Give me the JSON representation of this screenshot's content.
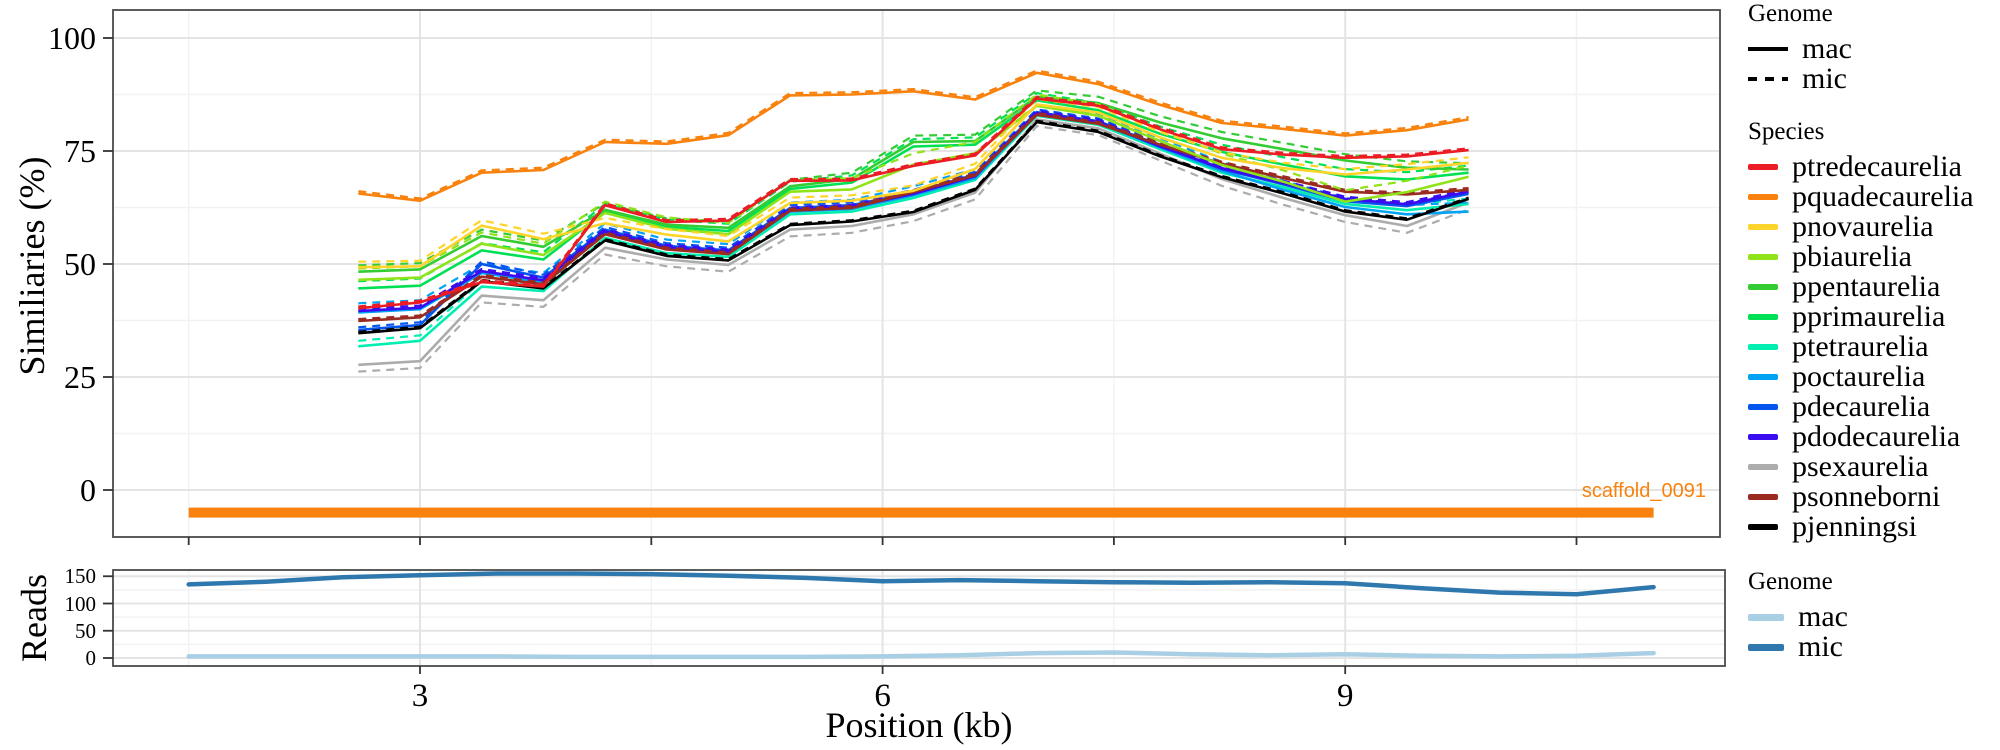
{
  "chart_data": [
    {
      "id": "similarity_panel",
      "type": "line",
      "title": "",
      "ylabel": "Similiaries (%)",
      "xlabel": "",
      "ylim": [
        -10,
        106
      ],
      "xlim": [
        1.0,
        11.43
      ],
      "grid": "on",
      "y_ticks": [
        {
          "label": "100",
          "value": 100
        },
        {
          "label": "75",
          "value": 75
        },
        {
          "label": "50",
          "value": 50
        },
        {
          "label": "25",
          "value": 25
        },
        {
          "label": "0",
          "value": 0
        }
      ],
      "y_minor_gridlines": [
        12.5,
        37.5,
        62.5,
        87.5
      ],
      "x_major_gridlines": [
        3,
        6,
        9
      ],
      "x_minor_gridlines": [
        1.5,
        4.5,
        7.5,
        10.5
      ],
      "x_axis_ticks": [
        1.5,
        3,
        4.5,
        6,
        7.5,
        9,
        10.5
      ],
      "x": [
        2.6,
        3.0,
        3.4,
        3.8,
        4.2,
        4.6,
        5.0,
        5.4,
        5.8,
        6.2,
        6.6,
        7.0,
        7.4,
        7.8,
        8.2,
        8.6,
        9.0,
        9.4,
        9.8
      ],
      "series": [
        {
          "species": "ptredecaurelia",
          "color": "#EC1C24",
          "mic_offset": 0.4,
          "mac": [
            40.2,
            41.5,
            46.0,
            45.0,
            63.0,
            59.3,
            59.6,
            68.4,
            68.5,
            71.7,
            74.0,
            86.6,
            85.0,
            79.8,
            75.4,
            74.2,
            73.5,
            73.8,
            75.2
          ]
        },
        {
          "species": "pquadecaurelia",
          "color": "#F8820D",
          "mic_offset": 0.5,
          "mac": [
            65.6,
            64.0,
            70.2,
            70.8,
            77.0,
            76.6,
            78.5,
            87.3,
            87.5,
            88.2,
            86.4,
            92.3,
            89.8,
            85.2,
            81.2,
            79.9,
            78.4,
            79.6,
            82.0
          ]
        },
        {
          "species": "pnovaurelia",
          "color": "#FFD42A",
          "mic_offset": 1.2,
          "mac": [
            49.3,
            49.5,
            58.5,
            55.5,
            59.0,
            56.5,
            55.0,
            63.5,
            64.0,
            66.2,
            71.0,
            85.3,
            83.5,
            78.0,
            73.5,
            71.2,
            69.8,
            70.9,
            72.4
          ]
        },
        {
          "species": "pbiaurelia",
          "color": "#8FE318",
          "mic_offset": 2.5,
          "mac": [
            46.5,
            47.0,
            54.5,
            52.0,
            61.3,
            57.8,
            56.6,
            66.0,
            66.5,
            72.0,
            74.5,
            85.0,
            82.8,
            77.2,
            71.9,
            68.2,
            63.8,
            65.9,
            69.3
          ]
        },
        {
          "species": "ppentaurelia",
          "color": "#33CC33",
          "mic_offset": 1.4,
          "mac": [
            48.3,
            48.8,
            56.2,
            53.8,
            62.0,
            58.7,
            58.0,
            67.2,
            68.8,
            77.0,
            77.2,
            87.0,
            85.6,
            81.3,
            77.8,
            75.4,
            72.9,
            71.3,
            70.9
          ]
        },
        {
          "species": "pprimaurelia",
          "color": "#00E054",
          "mic_offset": 1.6,
          "mac": [
            44.6,
            45.2,
            53.0,
            51.0,
            61.6,
            58.2,
            57.3,
            66.6,
            68.0,
            76.0,
            76.4,
            86.2,
            84.0,
            78.8,
            74.8,
            72.0,
            69.4,
            68.7,
            70.2
          ]
        },
        {
          "species": "ptetraurelia",
          "color": "#00EFB0",
          "mic_offset": 1.2,
          "mac": [
            31.8,
            33.0,
            45.0,
            44.0,
            55.8,
            52.4,
            51.6,
            61.0,
            61.6,
            64.6,
            68.6,
            82.8,
            80.8,
            75.4,
            70.2,
            67.0,
            63.3,
            61.9,
            63.3
          ]
        },
        {
          "species": "poctaurelia",
          "color": "#00A2F3",
          "mic_offset": 2.0,
          "mac": [
            39.3,
            40.0,
            48.0,
            46.0,
            57.0,
            53.4,
            52.4,
            61.6,
            62.2,
            65.2,
            69.0,
            83.2,
            81.2,
            75.8,
            70.6,
            66.4,
            62.6,
            61.0,
            61.6
          ]
        },
        {
          "species": "pdecaurelia",
          "color": "#0455EE",
          "mic_offset": 0.6,
          "mac": [
            35.4,
            36.5,
            50.0,
            47.0,
            57.6,
            54.0,
            53.0,
            62.4,
            63.0,
            65.8,
            69.8,
            83.6,
            81.6,
            76.2,
            71.0,
            67.6,
            63.9,
            62.8,
            65.5
          ]
        },
        {
          "species": "pdodecaurelia",
          "color": "#3A0CF0",
          "mic_offset": 0.5,
          "mac": [
            39.6,
            40.3,
            48.4,
            46.4,
            57.2,
            53.7,
            52.7,
            62.0,
            62.6,
            65.5,
            69.4,
            83.4,
            81.4,
            76.0,
            71.2,
            67.9,
            64.4,
            63.2,
            66.0
          ]
        },
        {
          "species": "psexaurelia",
          "color": "#ACACAC",
          "mic_offset": -1.5,
          "mac": [
            27.7,
            28.5,
            43.0,
            42.0,
            53.6,
            51.0,
            49.8,
            57.6,
            58.4,
            61.0,
            65.8,
            82.0,
            80.0,
            74.4,
            68.8,
            64.6,
            60.8,
            58.4,
            63.6
          ]
        },
        {
          "species": "psonneborni",
          "color": "#9B2A20",
          "mic_offset": 0.4,
          "mac": [
            37.4,
            38.2,
            47.2,
            45.5,
            56.6,
            53.2,
            52.2,
            61.8,
            62.4,
            65.9,
            69.6,
            83.0,
            81.0,
            76.4,
            72.2,
            69.0,
            66.0,
            65.4,
            66.4
          ]
        },
        {
          "species": "pjenningsi",
          "color": "#000000",
          "mic_offset": 0.3,
          "mac": [
            34.7,
            35.8,
            46.2,
            44.6,
            55.2,
            51.8,
            50.8,
            58.6,
            59.4,
            61.5,
            66.4,
            81.4,
            79.2,
            73.8,
            69.2,
            65.6,
            61.6,
            59.8,
            64.4
          ]
        }
      ],
      "annotation": {
        "label": "scaffold_0091",
        "color": "#F8820D",
        "bar_x_start": 1.5,
        "bar_x_end": 11.0,
        "bar_y": -5
      }
    },
    {
      "id": "reads_panel",
      "type": "line",
      "title": "",
      "ylabel": "Reads",
      "xlabel": "Position (kb)",
      "ylim": [
        -15,
        161
      ],
      "xlim": [
        1.0,
        11.46
      ],
      "grid": "on",
      "y_ticks": [
        {
          "label": "150",
          "value": 150
        },
        {
          "label": "100",
          "value": 100
        },
        {
          "label": "50",
          "value": 50
        },
        {
          "label": "0",
          "value": 0
        }
      ],
      "y_minor_gridlines": [
        25,
        75,
        125
      ],
      "x_major_gridlines": [
        3,
        6,
        9
      ],
      "x_minor_gridlines": [
        1.5,
        4.5,
        7.5,
        10.5
      ],
      "x_ticks": [
        {
          "label": "3",
          "value": 3
        },
        {
          "label": "6",
          "value": 6
        },
        {
          "label": "9",
          "value": 9
        }
      ],
      "x": [
        1.5,
        2.0,
        2.5,
        3.0,
        3.5,
        4.0,
        4.5,
        5.0,
        5.5,
        6.0,
        6.5,
        7.0,
        7.5,
        8.0,
        8.5,
        9.0,
        9.5,
        10.0,
        10.5,
        11.0
      ],
      "series": [
        {
          "name": "mac",
          "color": "#A9CFE5",
          "values": [
            3,
            3,
            3,
            3,
            3,
            2,
            2,
            2,
            2,
            3,
            5,
            9,
            10,
            7,
            5,
            7,
            4,
            3,
            4,
            9
          ]
        },
        {
          "name": "mic",
          "color": "#2E78AE",
          "values": [
            135,
            140,
            148,
            152,
            155,
            155,
            154,
            151,
            147,
            141,
            143,
            141,
            139,
            138,
            139,
            137,
            128,
            120,
            117,
            130
          ]
        }
      ]
    }
  ],
  "legends": {
    "genome_lines": {
      "title": "Genome",
      "items": [
        {
          "label": "mac",
          "style": "solid"
        },
        {
          "label": "mic",
          "style": "dashed"
        }
      ]
    },
    "species": {
      "title": "Species",
      "items": [
        {
          "label": "ptredecaurelia",
          "color": "#EC1C24"
        },
        {
          "label": "pquadecaurelia",
          "color": "#F8820D"
        },
        {
          "label": "pnovaurelia",
          "color": "#FFD42A"
        },
        {
          "label": "pbiaurelia",
          "color": "#8FE318"
        },
        {
          "label": "ppentaurelia",
          "color": "#33CC33"
        },
        {
          "label": "pprimaurelia",
          "color": "#00E054"
        },
        {
          "label": "ptetraurelia",
          "color": "#00EFB0"
        },
        {
          "label": "poctaurelia",
          "color": "#00A2F3"
        },
        {
          "label": "pdecaurelia",
          "color": "#0455EE"
        },
        {
          "label": "pdodecaurelia",
          "color": "#3A0CF0"
        },
        {
          "label": "psexaurelia",
          "color": "#ACACAC"
        },
        {
          "label": "psonneborni",
          "color": "#9B2A20"
        },
        {
          "label": "pjenningsi",
          "color": "#000000"
        }
      ]
    },
    "genome_reads": {
      "title": "Genome",
      "items": [
        {
          "label": "mac",
          "color": "#A9CFE5"
        },
        {
          "label": "mic",
          "color": "#2E78AE"
        }
      ]
    }
  },
  "style_colors": {
    "grid_major": "#E4E4E4",
    "grid_minor": "#F2F2F2",
    "panel_border": "#4A4A4A",
    "tick_mark": "#333333"
  }
}
